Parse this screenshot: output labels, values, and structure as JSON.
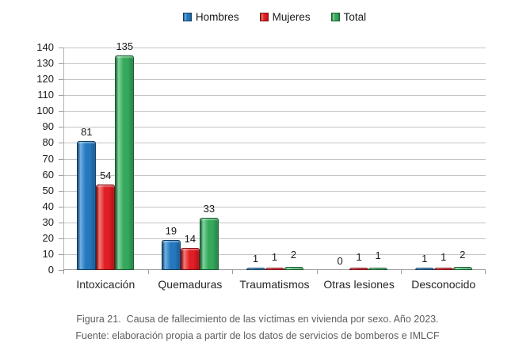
{
  "figure": {
    "caption_line1": "Figura 21.  Causa de fallecimiento de las víctimas en vivienda por sexo. Año 2023.",
    "caption_line2": "Fuente: elaboración propia a partir de los datos de servicios de bomberos e IMLCF"
  },
  "chart_data": {
    "type": "bar",
    "title": "",
    "xlabel": "",
    "ylabel": "",
    "categories": [
      "Intoxicación",
      "Quemaduras",
      "Traumatismos",
      "Otras lesiones",
      "Desconocido"
    ],
    "series": [
      {
        "name": "Hombres",
        "values": [
          81,
          19,
          1,
          0,
          1
        ],
        "color": "#2578BE",
        "color_light": "#6FB1E4",
        "color_dark": "#1B5C94",
        "color_edge": "#123F66"
      },
      {
        "name": "Mujeres",
        "values": [
          54,
          14,
          1,
          1,
          1
        ],
        "color": "#E01E25",
        "color_light": "#F47C74",
        "color_dark": "#AF1218",
        "color_edge": "#7E0D12"
      },
      {
        "name": "Total",
        "values": [
          135,
          33,
          2,
          1,
          2
        ],
        "color": "#35A85B",
        "color_light": "#7FD49C",
        "color_dark": "#27824A",
        "color_edge": "#175C31"
      }
    ],
    "ylim": [
      0,
      140
    ],
    "ytick_step": 10,
    "grid": true,
    "legend_position": "top",
    "value_labels": true,
    "gridline_color": "#c4c4c4",
    "axis_color": "#9c9c9c",
    "label_color": "#1a1a1a",
    "caption_color": "#5e5e5e"
  }
}
